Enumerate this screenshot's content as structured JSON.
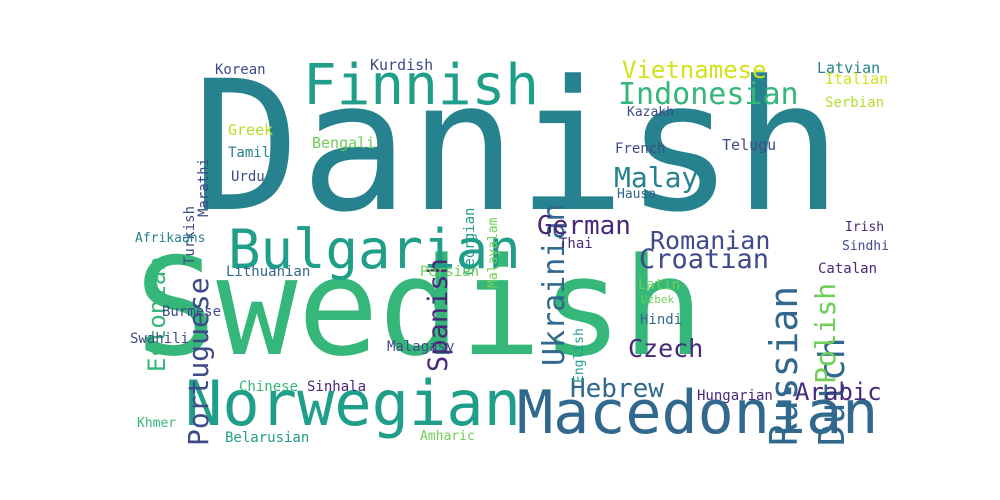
{
  "palette": {
    "background": "#ffffff",
    "deep_purple": "#482878",
    "indigo": "#3e4a89",
    "blue": "#31688e",
    "teal": "#26828e",
    "sea_green": "#1f9e89",
    "green": "#35b779",
    "light_green": "#6ece58",
    "lime": "#b5de2b",
    "yellow": "#d2e21b"
  },
  "words": [
    {
      "text": "Danish",
      "color": "teal"
    },
    {
      "text": "Swedish",
      "color": "green"
    },
    {
      "text": "Macedonian",
      "color": "blue"
    },
    {
      "text": "Norwegian",
      "color": "sea_green"
    },
    {
      "text": "Finnish",
      "color": "sea_green"
    },
    {
      "text": "Bulgarian",
      "color": "sea_green"
    },
    {
      "text": "Russian",
      "color": "blue"
    },
    {
      "text": "Dutch",
      "color": "blue"
    },
    {
      "text": "Ukrainian",
      "color": "blue"
    },
    {
      "text": "Polish",
      "color": "light_green"
    },
    {
      "text": "Portuguese",
      "color": "indigo"
    },
    {
      "text": "Estonian",
      "color": "green"
    },
    {
      "text": "Spanish",
      "color": "deep_purple"
    },
    {
      "text": "Indonesian",
      "color": "green"
    },
    {
      "text": "Vietnamese",
      "color": "yellow"
    },
    {
      "text": "Malay",
      "color": "teal"
    },
    {
      "text": "German",
      "color": "deep_purple"
    },
    {
      "text": "Romanian",
      "color": "indigo"
    },
    {
      "text": "Croatian",
      "color": "indigo"
    },
    {
      "text": "Hebrew",
      "color": "blue"
    },
    {
      "text": "Arabic",
      "color": "deep_purple"
    },
    {
      "text": "Czech",
      "color": "deep_purple"
    },
    {
      "text": "Kurdish",
      "color": "indigo"
    },
    {
      "text": "Korean",
      "color": "indigo"
    },
    {
      "text": "Marathi",
      "color": "indigo"
    },
    {
      "text": "Turkish",
      "color": "indigo"
    },
    {
      "text": "Greek",
      "color": "lime"
    },
    {
      "text": "Tamil",
      "color": "teal"
    },
    {
      "text": "Urdu",
      "color": "indigo"
    },
    {
      "text": "Bengali",
      "color": "light_green"
    },
    {
      "text": "Georgian",
      "color": "sea_green"
    },
    {
      "text": "Malayalam",
      "color": "light_green"
    },
    {
      "text": "Kazakh",
      "color": "indigo"
    },
    {
      "text": "French",
      "color": "indigo"
    },
    {
      "text": "Telugu",
      "color": "indigo"
    },
    {
      "text": "Hausa",
      "color": "blue"
    },
    {
      "text": "Latvian",
      "color": "teal"
    },
    {
      "text": "Italian",
      "color": "yellow"
    },
    {
      "text": "Serbian",
      "color": "lime"
    },
    {
      "text": "Irish",
      "color": "deep_purple"
    },
    {
      "text": "Sindhi",
      "color": "indigo"
    },
    {
      "text": "Catalan",
      "color": "deep_purple"
    },
    {
      "text": "Thai",
      "color": "deep_purple"
    },
    {
      "text": "English",
      "color": "sea_green"
    },
    {
      "text": "Latin",
      "color": "light_green"
    },
    {
      "text": "Uzbek",
      "color": "light_green"
    },
    {
      "text": "Hindi",
      "color": "blue"
    },
    {
      "text": "Afrikaans",
      "color": "teal"
    },
    {
      "text": "Lithuanian",
      "color": "blue"
    },
    {
      "text": "Persian",
      "color": "light_green"
    },
    {
      "text": "Burmese",
      "color": "indigo"
    },
    {
      "text": "Swahili",
      "color": "indigo"
    },
    {
      "text": "Malagasy",
      "color": "indigo"
    },
    {
      "text": "Chinese",
      "color": "green"
    },
    {
      "text": "Sinhala",
      "color": "deep_purple"
    },
    {
      "text": "Hungarian",
      "color": "deep_purple"
    },
    {
      "text": "Khmer",
      "color": "green"
    },
    {
      "text": "Belarusian",
      "color": "sea_green"
    },
    {
      "text": "Amharic",
      "color": "light_green"
    }
  ]
}
